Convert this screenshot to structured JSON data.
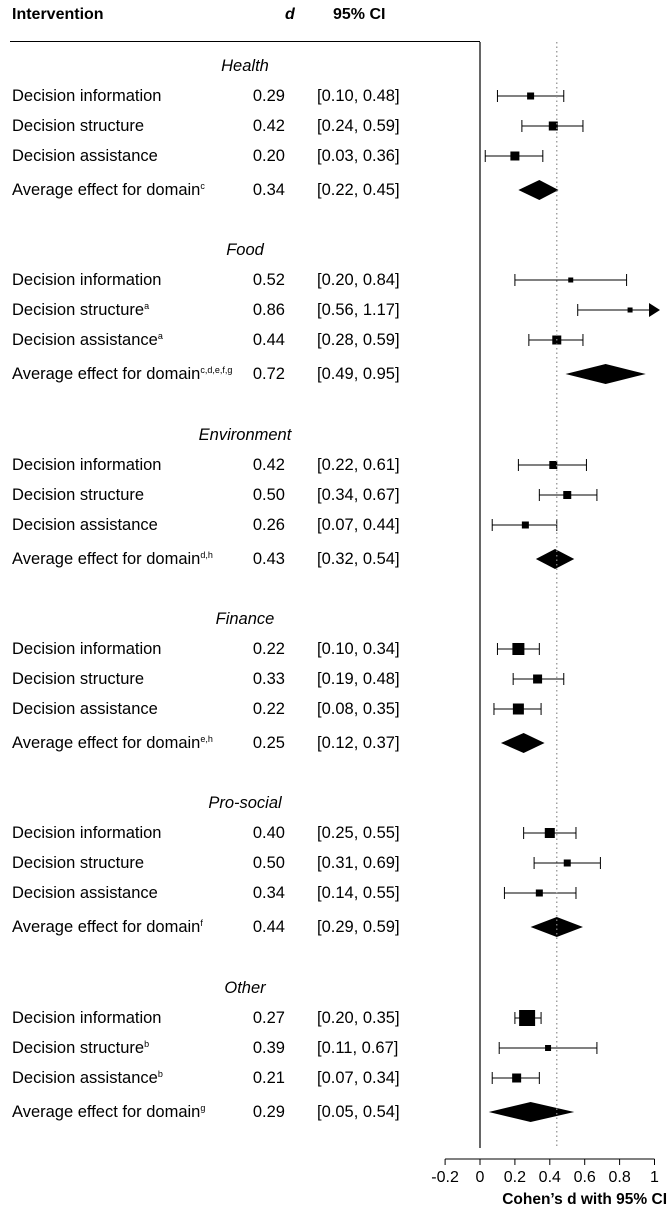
{
  "headers": {
    "intervention": "Intervention",
    "d": "d",
    "ci": "95% CI"
  },
  "colors": {
    "ink": "#000000",
    "reference_line": "#8c8c8c"
  },
  "chart_data": {
    "type": "forest",
    "title": "",
    "xlabel": "Cohen’s d with 95% CI",
    "xlim": [
      -0.2,
      1.0
    ],
    "xticks": [
      "-0.2",
      "0",
      "0.2",
      "0.4",
      "0.6",
      "0.8",
      "1"
    ],
    "zero_line": 0,
    "reference_line": 0.44,
    "domains": [
      {
        "name": "Health",
        "rows": [
          {
            "label": "Decision information",
            "sup": "",
            "d": 0.29,
            "d_text": "0.29",
            "lo": 0.1,
            "hi": 0.48,
            "ci_text": "[0.10, 0.48]",
            "type": "square",
            "weight": 7
          },
          {
            "label": "Decision structure",
            "sup": "",
            "d": 0.42,
            "d_text": "0.42",
            "lo": 0.24,
            "hi": 0.59,
            "ci_text": "[0.24, 0.59]",
            "type": "square",
            "weight": 9
          },
          {
            "label": "Decision assistance",
            "sup": "",
            "d": 0.2,
            "d_text": "0.20",
            "lo": 0.03,
            "hi": 0.36,
            "ci_text": "[0.03, 0.36]",
            "type": "square",
            "weight": 9
          },
          {
            "label": "Average effect for domain",
            "sup": "c",
            "d": 0.34,
            "d_text": "0.34",
            "lo": 0.22,
            "hi": 0.45,
            "ci_text": "[0.22, 0.45]",
            "type": "diamond"
          }
        ]
      },
      {
        "name": "Food",
        "rows": [
          {
            "label": "Decision information",
            "sup": "",
            "d": 0.52,
            "d_text": "0.52",
            "lo": 0.2,
            "hi": 0.84,
            "ci_text": "[0.20, 0.84]",
            "type": "square",
            "weight": 5
          },
          {
            "label": "Decision structure",
            "sup": "a",
            "d": 0.86,
            "d_text": "0.86",
            "lo": 0.56,
            "hi": 1.17,
            "ci_text": "[0.56, 1.17]",
            "type": "square",
            "weight": 5
          },
          {
            "label": "Decision assistance",
            "sup": "a",
            "d": 0.44,
            "d_text": "0.44",
            "lo": 0.28,
            "hi": 0.59,
            "ci_text": "[0.28, 0.59]",
            "type": "square",
            "weight": 9
          },
          {
            "label": "Average effect for domain",
            "sup": "c,d,e,f,g",
            "d": 0.72,
            "d_text": "0.72",
            "lo": 0.49,
            "hi": 0.95,
            "ci_text": "[0.49, 0.95]",
            "type": "diamond"
          }
        ]
      },
      {
        "name": "Environment",
        "rows": [
          {
            "label": "Decision information",
            "sup": "",
            "d": 0.42,
            "d_text": "0.42",
            "lo": 0.22,
            "hi": 0.61,
            "ci_text": "[0.22, 0.61]",
            "type": "square",
            "weight": 8
          },
          {
            "label": "Decision structure",
            "sup": "",
            "d": 0.5,
            "d_text": "0.50",
            "lo": 0.34,
            "hi": 0.67,
            "ci_text": "[0.34, 0.67]",
            "type": "square",
            "weight": 8
          },
          {
            "label": "Decision assistance",
            "sup": "",
            "d": 0.26,
            "d_text": "0.26",
            "lo": 0.07,
            "hi": 0.44,
            "ci_text": "[0.07, 0.44]",
            "type": "square",
            "weight": 7
          },
          {
            "label": "Average effect for domain",
            "sup": "d,h",
            "d": 0.43,
            "d_text": "0.43",
            "lo": 0.32,
            "hi": 0.54,
            "ci_text": "[0.32, 0.54]",
            "type": "diamond"
          }
        ]
      },
      {
        "name": "Finance",
        "rows": [
          {
            "label": "Decision information",
            "sup": "",
            "d": 0.22,
            "d_text": "0.22",
            "lo": 0.1,
            "hi": 0.34,
            "ci_text": "[0.10, 0.34]",
            "type": "square",
            "weight": 12
          },
          {
            "label": "Decision structure",
            "sup": "",
            "d": 0.33,
            "d_text": "0.33",
            "lo": 0.19,
            "hi": 0.48,
            "ci_text": "[0.19, 0.48]",
            "type": "square",
            "weight": 9
          },
          {
            "label": "Decision assistance",
            "sup": "",
            "d": 0.22,
            "d_text": "0.22",
            "lo": 0.08,
            "hi": 0.35,
            "ci_text": "[0.08, 0.35]",
            "type": "square",
            "weight": 11
          },
          {
            "label": "Average effect for domain",
            "sup": "e,h",
            "d": 0.25,
            "d_text": "0.25",
            "lo": 0.12,
            "hi": 0.37,
            "ci_text": "[0.12, 0.37]",
            "type": "diamond"
          }
        ]
      },
      {
        "name": "Pro-social",
        "rows": [
          {
            "label": "Decision information",
            "sup": "",
            "d": 0.4,
            "d_text": "0.40",
            "lo": 0.25,
            "hi": 0.55,
            "ci_text": "[0.25, 0.55]",
            "type": "square",
            "weight": 10
          },
          {
            "label": "Decision structure",
            "sup": "",
            "d": 0.5,
            "d_text": "0.50",
            "lo": 0.31,
            "hi": 0.69,
            "ci_text": "[0.31, 0.69]",
            "type": "square",
            "weight": 7
          },
          {
            "label": "Decision assistance",
            "sup": "",
            "d": 0.34,
            "d_text": "0.34",
            "lo": 0.14,
            "hi": 0.55,
            "ci_text": "[0.14, 0.55]",
            "type": "square",
            "weight": 7
          },
          {
            "label": "Average effect for domain",
            "sup": "f",
            "d": 0.44,
            "d_text": "0.44",
            "lo": 0.29,
            "hi": 0.59,
            "ci_text": "[0.29, 0.59]",
            "type": "diamond"
          }
        ]
      },
      {
        "name": "Other",
        "rows": [
          {
            "label": "Decision information",
            "sup": "",
            "d": 0.27,
            "d_text": "0.27",
            "lo": 0.2,
            "hi": 0.35,
            "ci_text": "[0.20, 0.35]",
            "type": "square",
            "weight": 16
          },
          {
            "label": "Decision structure",
            "sup": "b",
            "d": 0.39,
            "d_text": "0.39",
            "lo": 0.11,
            "hi": 0.67,
            "ci_text": "[0.11, 0.67]",
            "type": "square",
            "weight": 6
          },
          {
            "label": "Decision assistance",
            "sup": "b",
            "d": 0.21,
            "d_text": "0.21",
            "lo": 0.07,
            "hi": 0.34,
            "ci_text": "[0.07, 0.34]",
            "type": "square",
            "weight": 9
          },
          {
            "label": "Average effect for domain",
            "sup": "g",
            "d": 0.29,
            "d_text": "0.29",
            "lo": 0.05,
            "hi": 0.54,
            "ci_text": "[0.05, 0.54]",
            "type": "diamond"
          }
        ]
      }
    ]
  }
}
